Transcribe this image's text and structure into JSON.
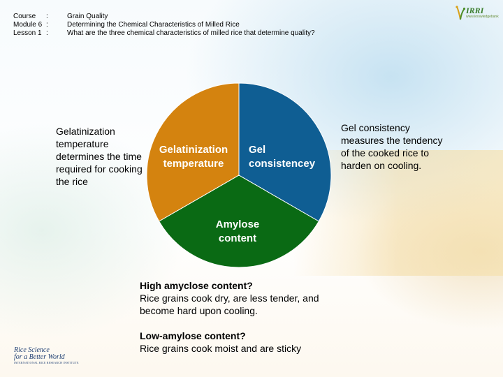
{
  "header": {
    "rows": [
      {
        "key": "Course",
        "sep": ":",
        "value": "Grain Quality"
      },
      {
        "key": "Module 6",
        "sep": ":",
        "value": "Determining the Chemical Characteristics of Milled Rice"
      },
      {
        "key": "Lesson 1",
        "sep": ":",
        "value": "What are the three chemical characteristics of milled rice that determine quality?"
      }
    ]
  },
  "logo_top": {
    "text": "IRRI",
    "subtext": "www.knowledgebank"
  },
  "diagram": {
    "segments": [
      {
        "label_line1": "Gelatinization",
        "label_line2": "temperature",
        "color": "#d4830f"
      },
      {
        "label_line1": "Gel",
        "label_line2": "consistencey",
        "color": "#0f5e93"
      },
      {
        "label_line1": "Amylose",
        "label_line2": "content",
        "color": "#0a6a14"
      }
    ]
  },
  "left_text": "Gelatinization temperature determines the time required for cooking the rice",
  "right_text": "Gel consistency measures the tendency of the cooked rice to harden on cooling.",
  "bottom": {
    "q1": "High amyclose content?",
    "a1": "Rice grains cook dry, are less tender, and become hard upon cooling.",
    "q2": "Low-amylose content?",
    "a2": "Rice grains cook moist and are sticky"
  },
  "logo_bottom": {
    "line1": "Rice Science",
    "line2": "for a Better World",
    "line3": "INTERNATIONAL RICE RESEARCH INSTITUTE"
  }
}
